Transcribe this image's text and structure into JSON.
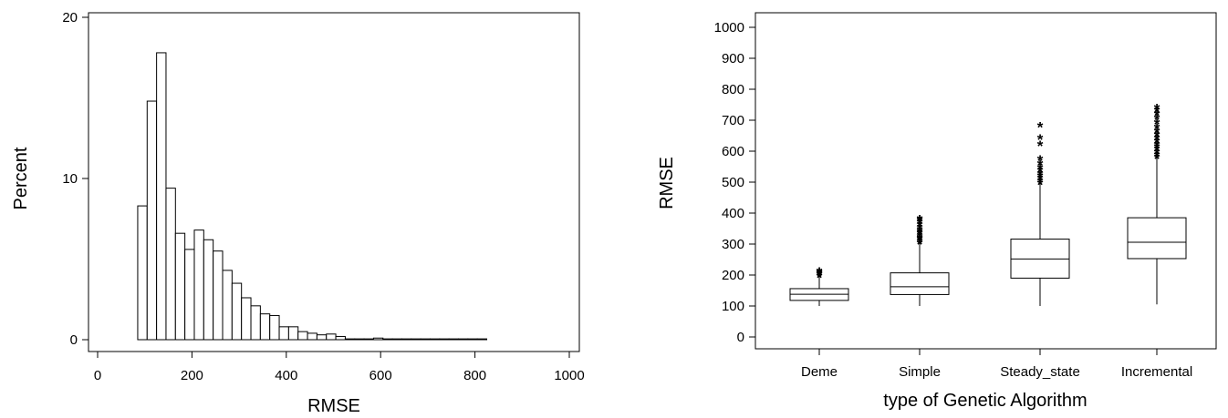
{
  "chart_data": [
    {
      "type": "bar",
      "subtype": "histogram",
      "xlabel": "RMSE",
      "ylabel": "Percent",
      "xlim": [
        0,
        1000
      ],
      "ylim": [
        0,
        20
      ],
      "xticks": [
        "0",
        "200",
        "400",
        "600",
        "800",
        "1000"
      ],
      "yticks": [
        "0",
        "10",
        "20"
      ],
      "bin_start": 85,
      "bin_width": 20,
      "values": [
        8.3,
        14.8,
        17.8,
        9.4,
        6.6,
        5.6,
        6.8,
        6.2,
        5.5,
        4.3,
        3.5,
        2.6,
        2.1,
        1.6,
        1.5,
        0.8,
        0.8,
        0.5,
        0.4,
        0.3,
        0.35,
        0.2,
        0.05,
        0.05,
        0.05,
        0.1,
        0.05,
        0.05,
        0.05,
        0.05,
        0.05,
        0.05,
        0.05,
        0.05,
        0.05,
        0.05,
        0.05
      ],
      "grid": false,
      "color": "#ffffff",
      "edge_color": "#000000"
    },
    {
      "type": "box",
      "xlabel": "type of Genetic Algorithm",
      "ylabel": "RMSE",
      "ylim": [
        0,
        1000
      ],
      "yticks": [
        "0",
        "100",
        "200",
        "300",
        "400",
        "500",
        "600",
        "700",
        "800",
        "900",
        "1000"
      ],
      "categories": [
        "Deme",
        "Simple",
        "Steady_state",
        "Incremental"
      ],
      "boxes": [
        {
          "whisker_low": 100,
          "q1": 118,
          "median": 138,
          "q3": 156,
          "whisker_high": 200,
          "outliers": [
            205,
            210,
            213,
            217,
            221
          ]
        },
        {
          "whisker_low": 100,
          "q1": 137,
          "median": 162,
          "q3": 207,
          "whisker_high": 305,
          "outliers": [
            312,
            318,
            325,
            330,
            336,
            342,
            348,
            355,
            362,
            370,
            378,
            385,
            390
          ]
        },
        {
          "whisker_low": 100,
          "q1": 190,
          "median": 252,
          "q3": 316,
          "whisker_high": 498,
          "outliers": [
            505,
            512,
            520,
            528,
            535,
            545,
            555,
            568,
            582,
            630,
            650,
            690
          ]
        },
        {
          "whisker_low": 105,
          "q1": 253,
          "median": 306,
          "q3": 385,
          "whisker_high": 580,
          "outliers": [
            588,
            596,
            605,
            614,
            622,
            630,
            640,
            650,
            660,
            672,
            685,
            700,
            715,
            728,
            740,
            748
          ]
        }
      ],
      "outlier_marker": "*",
      "grid": false
    }
  ]
}
